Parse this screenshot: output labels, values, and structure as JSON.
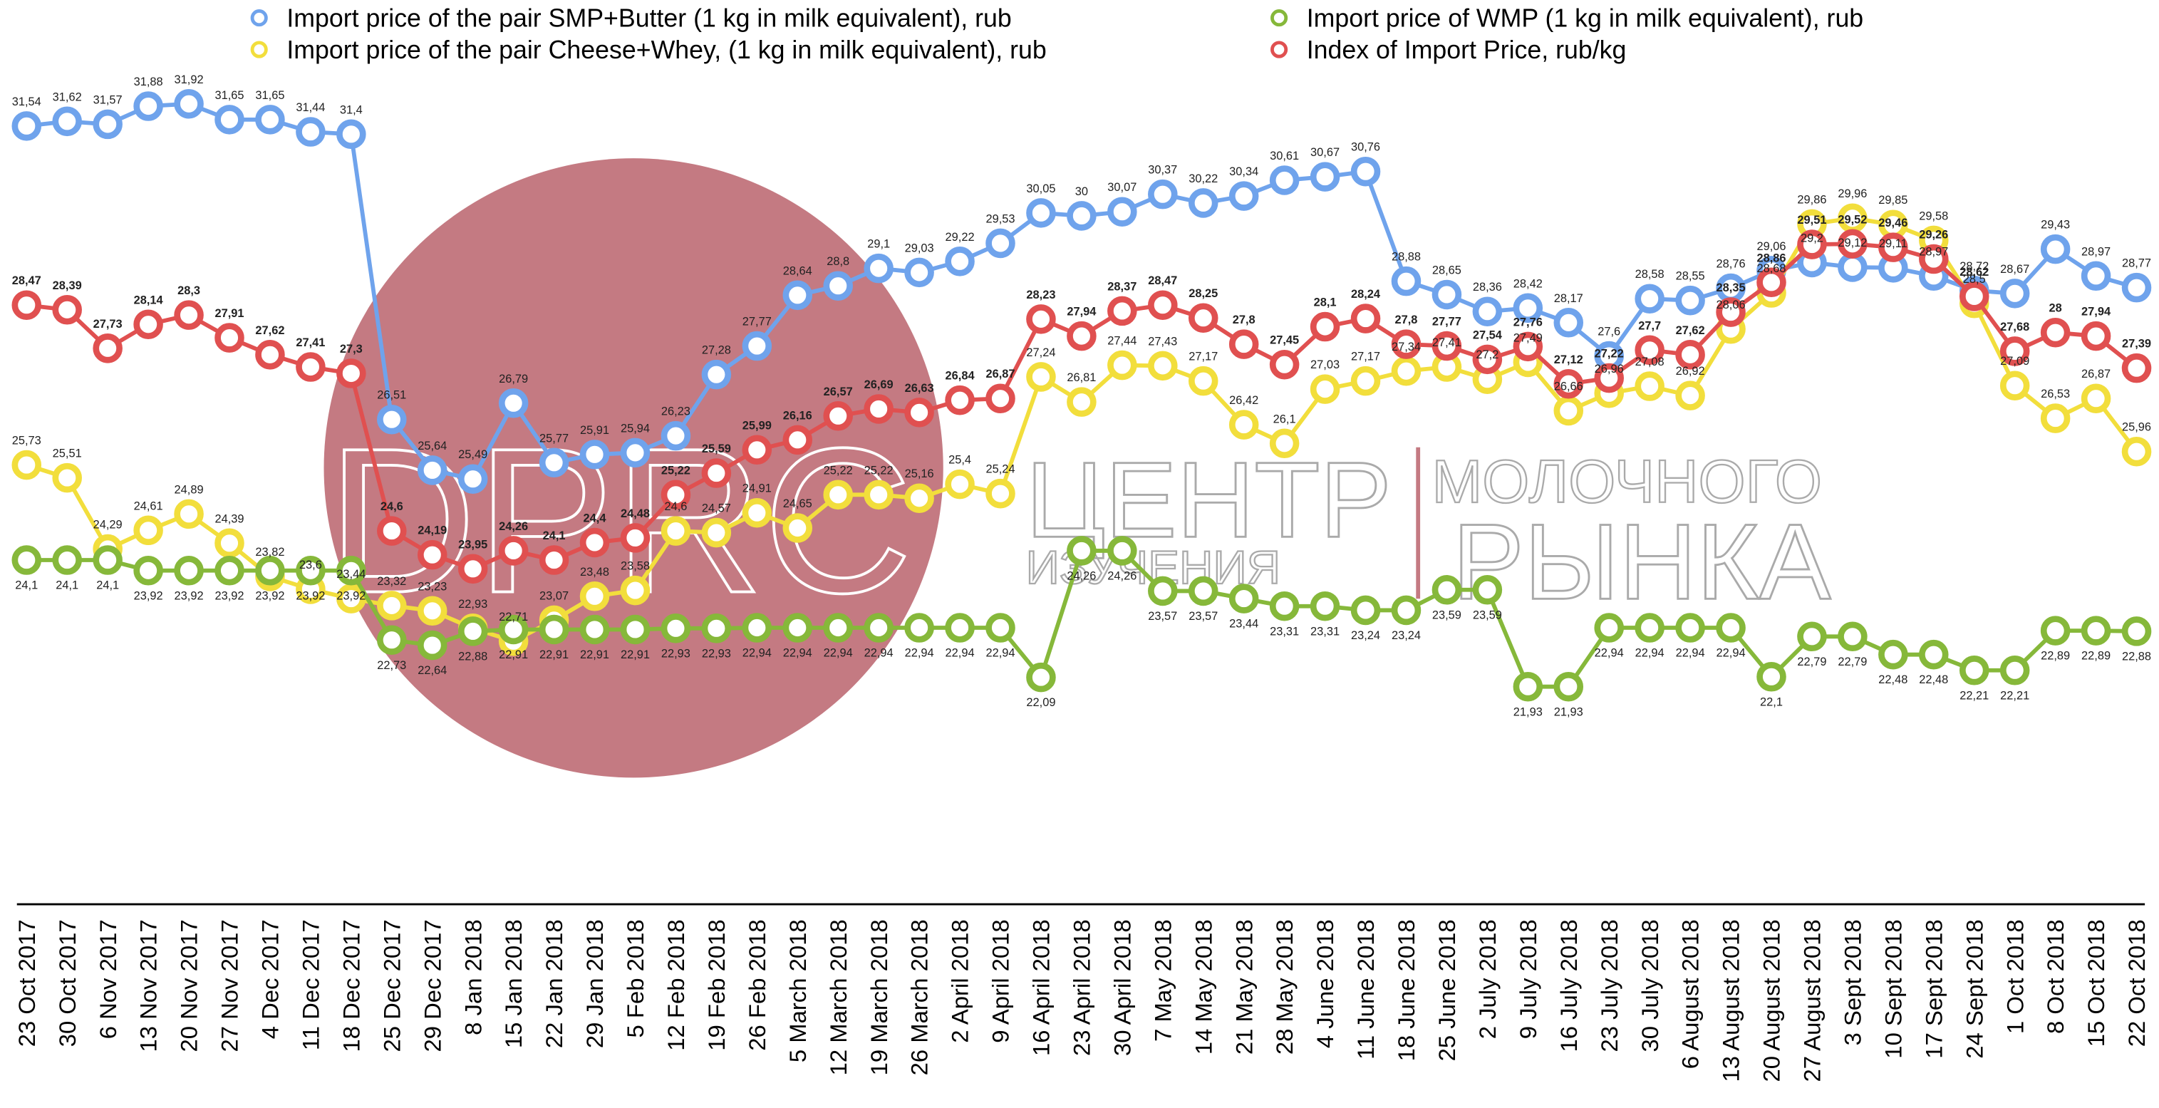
{
  "chart_data": {
    "type": "line",
    "watermark": {
      "logo": "DPRC",
      "line1": "ЦЕНТР",
      "line2": "ИЗУЧЕНИЯ",
      "line3": "МОЛОЧНОГО",
      "line4": "РЫНКА"
    },
    "categories": [
      "23 Oct 2017",
      "30 Oct 2017",
      "6 Nov 2017",
      "13 Nov 2017",
      "20 Nov 2017",
      "27 Nov 2017",
      "4 Dec 2017",
      "11 Dec 2017",
      "18 Dec 2017",
      "25 Dec 2017",
      "29 Dec 2017",
      "8 Jan 2018",
      "15 Jan 2018",
      "22 Jan 2018",
      "29 Jan 2018",
      "5 Feb 2018",
      "12 Feb 2018",
      "19 Feb 2018",
      "26 Feb 2018",
      "5 March 2018",
      "12 March 2018",
      "19 March 2018",
      "26 March 2018",
      "2 April 2018",
      "9 April 2018",
      "16 April 2018",
      "23 April 2018",
      "30 April 2018",
      "7 May 2018",
      "14 May 2018",
      "21 May 2018",
      "28 May 2018",
      "4 June 2018",
      "11 June 2018",
      "18 June 2018",
      "25 June 2018",
      "2 July 2018",
      "9 July 2018",
      "16 July 2018",
      "23 July 2018",
      "30 July 2018",
      "6 August 2018",
      "13 August 2018",
      "20 August 2018",
      "27 August 2018",
      "3 Sept 2018",
      "10 Sept 2018",
      "17 Sept 2018",
      "24 Sept 2018",
      "1 Oct 2018",
      "8 Oct 2018",
      "15 Oct 2018",
      "22 Oct 2018"
    ],
    "ylim": [
      18.2,
      33.7
    ],
    "series": [
      {
        "name": "Import price of the pair SMP+Butter (1 kg in milk equivalent), rub",
        "color": "#6fa3ec",
        "values": [
          31.54,
          31.62,
          31.57,
          31.88,
          31.92,
          31.65,
          31.65,
          31.44,
          31.4,
          26.51,
          25.64,
          25.49,
          26.79,
          25.77,
          25.91,
          25.94,
          26.23,
          27.28,
          27.77,
          28.64,
          28.8,
          29.1,
          29.03,
          29.22,
          29.53,
          30.05,
          30,
          30.07,
          30.37,
          30.22,
          30.34,
          30.61,
          30.67,
          30.76,
          28.88,
          28.65,
          28.36,
          28.42,
          28.17,
          27.6,
          28.58,
          28.55,
          28.76,
          29.06,
          29.2,
          29.12,
          29.11,
          28.97,
          28.72,
          28.67,
          29.43,
          28.97,
          28.77
        ],
        "value_labels": [
          "31,54",
          "31,62",
          "31,57",
          "31,88",
          "31,92",
          "31,65",
          "31,65",
          "31,44",
          "31,4",
          "26,51",
          "25,64",
          "25,49",
          "26,79",
          "25,77",
          "25,91",
          "25,94",
          "26,23",
          "27,28",
          "27,77",
          "28,64",
          "28,8",
          "29,1",
          "29,03",
          "29,22",
          "29,53",
          "30,05",
          "30",
          "30,07",
          "30,37",
          "30,22",
          "30,34",
          "30,61",
          "30,67",
          "30,76",
          "28,88",
          "28,65",
          "28,36",
          "28,42",
          "28,17",
          "27,6",
          "28,58",
          "28,55",
          "28,76",
          "29,06",
          "29,2",
          "29,12",
          "29,11",
          "28,97",
          "28,72",
          "28,67",
          "29,43",
          "28,97",
          "28,77"
        ]
      },
      {
        "name": "Import price of the pair Cheese+Whey,  (1 kg in milk equivalent), rub",
        "color": "#f2de3c",
        "values": [
          25.73,
          25.51,
          24.29,
          24.61,
          24.89,
          24.39,
          23.82,
          23.6,
          23.44,
          23.32,
          23.23,
          22.93,
          22.71,
          23.07,
          23.48,
          23.58,
          24.6,
          24.57,
          24.91,
          24.65,
          25.22,
          25.22,
          25.16,
          25.4,
          25.24,
          27.24,
          26.81,
          27.44,
          27.43,
          27.17,
          26.42,
          26.1,
          27.03,
          27.17,
          27.34,
          27.41,
          27.2,
          27.49,
          26.66,
          26.96,
          27.08,
          26.92,
          28.06,
          28.68,
          29.86,
          29.96,
          29.85,
          29.58,
          28.5,
          27.09,
          26.53,
          26.87,
          25.96
        ],
        "value_labels": [
          "25,73",
          "25,51",
          "24,29",
          "24,61",
          "24,89",
          "24,39",
          "23,82",
          "23,6",
          "23,44",
          "23,32",
          "23,23",
          "22,93",
          "22,71",
          "23,07",
          "23,48",
          "23,58",
          "24,6",
          "24,57",
          "24,91",
          "24,65",
          "25,22",
          "25,22",
          "25,16",
          "25,4",
          "25,24",
          "27,24",
          "26,81",
          "27,44",
          "27,43",
          "27,17",
          "26,42",
          "26,1",
          "27,03",
          "27,17",
          "27,34",
          "27,41",
          "27,2",
          "27,49",
          "26,66",
          "26,96",
          "27,08",
          "26,92",
          "28,06",
          "28,68",
          "29,86",
          "29,96",
          "29,85",
          "29,58",
          "28,5",
          "27,09",
          "26,53",
          "26,87",
          "25,96"
        ]
      },
      {
        "name": "Import price of WMP (1 kg in milk equivalent), rub",
        "color": "#86b83a",
        "values": [
          24.1,
          24.1,
          24.1,
          23.92,
          23.92,
          23.92,
          23.92,
          23.92,
          23.92,
          22.73,
          22.64,
          22.88,
          22.91,
          22.91,
          22.91,
          22.91,
          22.93,
          22.93,
          22.94,
          22.94,
          22.94,
          22.94,
          22.94,
          22.94,
          22.94,
          22.09,
          24.26,
          24.26,
          23.57,
          23.57,
          23.44,
          23.31,
          23.31,
          23.24,
          23.24,
          23.59,
          23.59,
          21.93,
          21.93,
          22.94,
          22.94,
          22.94,
          22.94,
          22.1,
          22.79,
          22.79,
          22.48,
          22.48,
          22.21,
          22.21,
          22.89,
          22.89,
          22.88
        ],
        "value_labels": [
          "24,1",
          "24,1",
          "24,1",
          "23,92",
          "23,92",
          "23,92",
          "23,92",
          "23,92",
          "23,92",
          "22,73",
          "22,64",
          "22,88",
          "22,91",
          "22,91",
          "22,91",
          "22,91",
          "22,93",
          "22,93",
          "22,94",
          "22,94",
          "22,94",
          "22,94",
          "22,94",
          "22,94",
          "22,94",
          "22,09",
          "24,26",
          "24,26",
          "23,57",
          "23,57",
          "23,44",
          "23,31",
          "23,31",
          "23,24",
          "23,24",
          "23,59",
          "23,59",
          "21,93",
          "21,93",
          "22,94",
          "22,94",
          "22,94",
          "22,94",
          "22,1",
          "22,79",
          "22,79",
          "22,48",
          "22,48",
          "22,21",
          "22,21",
          "22,89",
          "22,89",
          "22,88"
        ]
      },
      {
        "name": "Index of Import Price, rub/kg",
        "color": "#e05050",
        "values": [
          28.47,
          28.39,
          27.73,
          28.14,
          28.3,
          27.91,
          27.62,
          27.41,
          27.3,
          24.6,
          24.19,
          23.95,
          24.26,
          24.1,
          24.4,
          24.48,
          25.22,
          25.59,
          25.99,
          26.16,
          26.57,
          26.69,
          26.63,
          26.84,
          26.87,
          28.23,
          27.94,
          28.37,
          28.47,
          28.25,
          27.8,
          27.45,
          28.1,
          28.24,
          27.8,
          27.77,
          27.54,
          27.76,
          27.12,
          27.22,
          27.7,
          27.62,
          28.35,
          28.86,
          29.51,
          29.52,
          29.46,
          29.26,
          28.62,
          27.68,
          28,
          27.94,
          27.39
        ],
        "value_labels": [
          "28,47",
          "28,39",
          "27,73",
          "28,14",
          "28,3",
          "27,91",
          "27,62",
          "27,41",
          "27,3",
          "24,6",
          "24,19",
          "23,95",
          "24,26",
          "24,1",
          "24,4",
          "24,48",
          "25,22",
          "25,59",
          "25,99",
          "26,16",
          "26,57",
          "26,69",
          "26,63",
          "26,84",
          "26,87",
          "28,23",
          "27,94",
          "28,37",
          "28,47",
          "28,25",
          "27,8",
          "27,45",
          "28,1",
          "28,24",
          "27,8",
          "27,77",
          "27,54",
          "27,76",
          "27,12",
          "27,22",
          "27,7",
          "27,62",
          "28,35",
          "28,86",
          "29,51",
          "29,52",
          "29,46",
          "29,26",
          "28,62",
          "27,68",
          "28",
          "27,94",
          "27,39"
        ]
      }
    ]
  }
}
